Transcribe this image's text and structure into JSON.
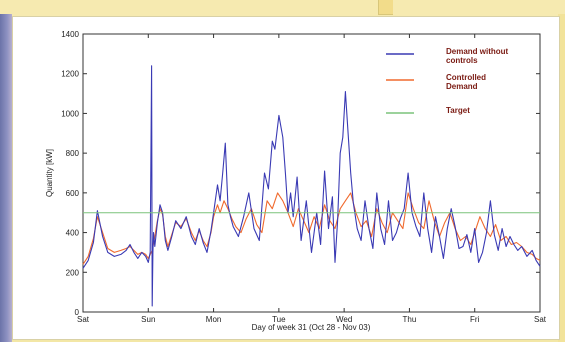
{
  "chart_data": {
    "type": "line",
    "xlabel": "Day of week 31 (Oct 28 - Nov 03)",
    "ylabel": "Quantity [kW]",
    "ylim": [
      0,
      1400
    ],
    "yticks": [
      0,
      200,
      400,
      600,
      800,
      1000,
      1200,
      1400
    ],
    "xlim": [
      0,
      7
    ],
    "xticks": [
      0,
      1,
      2,
      3,
      4,
      5,
      6,
      7
    ],
    "xticklabels": [
      "Sat",
      "Sun",
      "Mon",
      "Tue",
      "Wed",
      "Thu",
      "Fri",
      "Sat"
    ],
    "legend_position": "top-right",
    "grid": false,
    "series": [
      {
        "name": "Demand without controls",
        "color": "#3a3ab4",
        "x": [
          0,
          0.08,
          0.16,
          0.22,
          0.3,
          0.38,
          0.48,
          0.58,
          0.66,
          0.72,
          0.78,
          0.84,
          0.9,
          0.96,
          1.0,
          1.03,
          1.05,
          1.06,
          1.07,
          1.08,
          1.1,
          1.14,
          1.18,
          1.22,
          1.26,
          1.3,
          1.36,
          1.42,
          1.5,
          1.58,
          1.66,
          1.72,
          1.78,
          1.84,
          1.9,
          1.96,
          2.0,
          2.06,
          2.1,
          2.14,
          2.18,
          2.22,
          2.26,
          2.3,
          2.38,
          2.46,
          2.54,
          2.62,
          2.7,
          2.78,
          2.84,
          2.9,
          2.94,
          3.0,
          3.06,
          3.1,
          3.14,
          3.18,
          3.22,
          3.28,
          3.34,
          3.42,
          3.5,
          3.58,
          3.64,
          3.7,
          3.76,
          3.82,
          3.86,
          3.9,
          3.94,
          3.98,
          4.02,
          4.06,
          4.1,
          4.14,
          4.2,
          4.26,
          4.32,
          4.38,
          4.44,
          4.5,
          4.56,
          4.62,
          4.68,
          4.74,
          4.8,
          4.86,
          4.92,
          4.98,
          5.04,
          5.1,
          5.16,
          5.22,
          5.28,
          5.34,
          5.4,
          5.46,
          5.52,
          5.58,
          5.64,
          5.7,
          5.76,
          5.82,
          5.88,
          5.94,
          6.0,
          6.06,
          6.12,
          6.18,
          6.24,
          6.3,
          6.36,
          6.42,
          6.48,
          6.54,
          6.6,
          6.66,
          6.72,
          6.8,
          6.88,
          6.94,
          7.0
        ],
        "values": [
          220,
          260,
          350,
          510,
          380,
          300,
          280,
          290,
          310,
          340,
          300,
          270,
          300,
          280,
          250,
          300,
          1240,
          30,
          300,
          400,
          330,
          450,
          540,
          500,
          360,
          310,
          380,
          460,
          420,
          480,
          380,
          340,
          420,
          350,
          300,
          410,
          500,
          640,
          560,
          700,
          850,
          540,
          480,
          430,
          380,
          480,
          600,
          420,
          360,
          700,
          620,
          860,
          820,
          990,
          880,
          700,
          500,
          600,
          480,
          680,
          360,
          560,
          300,
          500,
          340,
          710,
          420,
          580,
          250,
          460,
          800,
          880,
          1110,
          900,
          700,
          550,
          420,
          360,
          560,
          420,
          320,
          600,
          420,
          340,
          560,
          360,
          400,
          470,
          520,
          700,
          500,
          430,
          380,
          600,
          420,
          300,
          480,
          380,
          270,
          420,
          520,
          430,
          320,
          330,
          390,
          300,
          420,
          250,
          300,
          400,
          560,
          390,
          310,
          420,
          330,
          380,
          340,
          310,
          330,
          280,
          310,
          260,
          230
        ]
      },
      {
        "name": "Controlled Demand",
        "color": "#f06a2e",
        "x": [
          0,
          0.08,
          0.16,
          0.22,
          0.3,
          0.38,
          0.48,
          0.58,
          0.66,
          0.72,
          0.78,
          0.84,
          0.9,
          0.96,
          1.0,
          1.06,
          1.1,
          1.14,
          1.18,
          1.22,
          1.26,
          1.3,
          1.36,
          1.42,
          1.5,
          1.58,
          1.66,
          1.72,
          1.78,
          1.84,
          1.9,
          1.96,
          2.0,
          2.06,
          2.1,
          2.16,
          2.22,
          2.28,
          2.34,
          2.42,
          2.5,
          2.58,
          2.66,
          2.74,
          2.82,
          2.9,
          2.98,
          3.06,
          3.14,
          3.22,
          3.3,
          3.38,
          3.46,
          3.54,
          3.62,
          3.7,
          3.78,
          3.86,
          3.94,
          4.02,
          4.1,
          4.18,
          4.26,
          4.34,
          4.42,
          4.5,
          4.58,
          4.66,
          4.74,
          4.82,
          4.9,
          4.98,
          5.06,
          5.14,
          5.22,
          5.3,
          5.38,
          5.46,
          5.54,
          5.62,
          5.7,
          5.78,
          5.86,
          5.94,
          6.0,
          6.08,
          6.16,
          6.24,
          6.32,
          6.4,
          6.48,
          6.56,
          6.64,
          6.72,
          6.8,
          6.88,
          6.94,
          7.0
        ],
        "values": [
          240,
          280,
          370,
          480,
          400,
          320,
          300,
          310,
          320,
          330,
          310,
          290,
          300,
          290,
          270,
          310,
          380,
          460,
          520,
          490,
          380,
          330,
          390,
          450,
          430,
          470,
          400,
          360,
          410,
          360,
          330,
          400,
          480,
          540,
          500,
          560,
          520,
          470,
          430,
          400,
          470,
          520,
          440,
          400,
          560,
          520,
          600,
          560,
          500,
          430,
          520,
          460,
          400,
          480,
          420,
          540,
          460,
          420,
          520,
          560,
          600,
          500,
          430,
          460,
          380,
          520,
          450,
          400,
          500,
          460,
          420,
          600,
          520,
          450,
          420,
          560,
          460,
          380,
          450,
          500,
          420,
          360,
          380,
          340,
          400,
          480,
          420,
          380,
          440,
          360,
          380,
          340,
          350,
          330,
          300,
          290,
          270,
          260
        ]
      },
      {
        "name": "Target",
        "color": "#7cc47c",
        "x": [
          0,
          7
        ],
        "values": [
          500,
          500
        ]
      }
    ],
    "legend": [
      {
        "label_lines": [
          "Demand without",
          "controls"
        ],
        "series": 0
      },
      {
        "label_lines": [
          "Controlled",
          "Demand"
        ],
        "series": 1
      },
      {
        "label_lines": [
          "Target"
        ],
        "series": 2
      }
    ]
  }
}
